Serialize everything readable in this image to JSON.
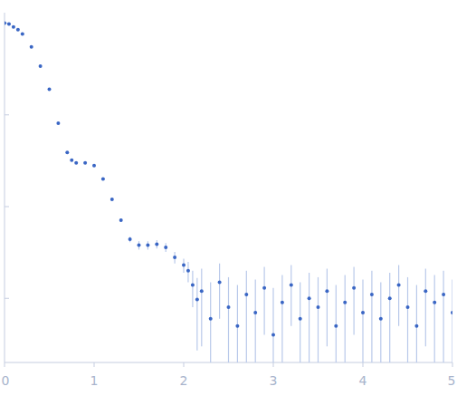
{
  "chart_data": {
    "type": "scatter",
    "log": "y",
    "tick_labels": "x",
    "color": "#3a66c4",
    "marker": "circle",
    "xlim": [
      0,
      5
    ],
    "xticks": [
      0,
      1,
      2,
      3,
      4,
      5
    ],
    "ylim": [
      0.0002,
      1.3
    ],
    "yticks": [
      0.001,
      0.01,
      0.1,
      1
    ],
    "x": [
      0,
      0.05,
      0.1,
      0.15,
      0.2,
      0.3,
      0.4,
      0.5,
      0.6,
      0.7,
      0.75,
      0.8,
      0.9,
      1.0,
      1.1,
      1.2,
      1.3,
      1.4,
      1.5,
      1.6,
      1.7,
      1.8,
      1.9,
      2.0,
      2.05,
      2.1,
      2.15,
      2.2,
      2.3,
      2.4,
      2.5,
      2.6,
      2.7,
      2.8,
      2.9,
      3.0,
      3.1,
      3.2,
      3.3,
      3.4,
      3.5,
      3.6,
      3.7,
      3.8,
      3.9,
      4.0,
      4.1,
      4.2,
      4.3,
      4.4,
      4.5,
      4.6,
      4.7,
      4.8,
      4.9,
      5.0
    ],
    "values": [
      1.0,
      0.98,
      0.91,
      0.85,
      0.76,
      0.55,
      0.34,
      0.19,
      0.081,
      0.039,
      0.032,
      0.03,
      0.03,
      0.028,
      0.02,
      0.012,
      0.0071,
      0.0044,
      0.0038,
      0.0038,
      0.0039,
      0.0036,
      0.0028,
      0.0023,
      0.002,
      0.0014,
      0.00097,
      0.0012,
      0.0006,
      0.0015,
      0.0008,
      0.0005,
      0.0011,
      0.0007,
      0.0013,
      0.0004,
      0.0009,
      0.0014,
      0.0006,
      0.001,
      0.0008,
      0.0012,
      0.0005,
      0.0009,
      0.0013,
      0.0007,
      0.0011,
      0.0006,
      0.001,
      0.0014,
      0.0008,
      0.0005,
      0.0012,
      0.0009,
      0.0011,
      0.0007
    ],
    "errors": [
      0.005,
      0.005,
      0.005,
      0.004,
      0.004,
      0.003,
      0.002,
      0.001,
      0.0005,
      0.0003,
      0.0003,
      0.0003,
      0.0003,
      0.0003,
      0.0003,
      0.0003,
      0.0003,
      0.0003,
      0.0004,
      0.0004,
      0.0004,
      0.0004,
      0.0004,
      0.0004,
      0.0005,
      0.0006,
      0.0007,
      0.0009,
      0.0009,
      0.0009,
      0.0009,
      0.0009,
      0.0009,
      0.0009,
      0.0009,
      0.0009,
      0.0009,
      0.0009,
      0.0009,
      0.0009,
      0.0009,
      0.0009,
      0.0009,
      0.0009,
      0.0009,
      0.0009,
      0.0009,
      0.0009,
      0.0009,
      0.0009,
      0.0009,
      0.0009,
      0.0009,
      0.0009,
      0.0009,
      0.0009
    ]
  }
}
